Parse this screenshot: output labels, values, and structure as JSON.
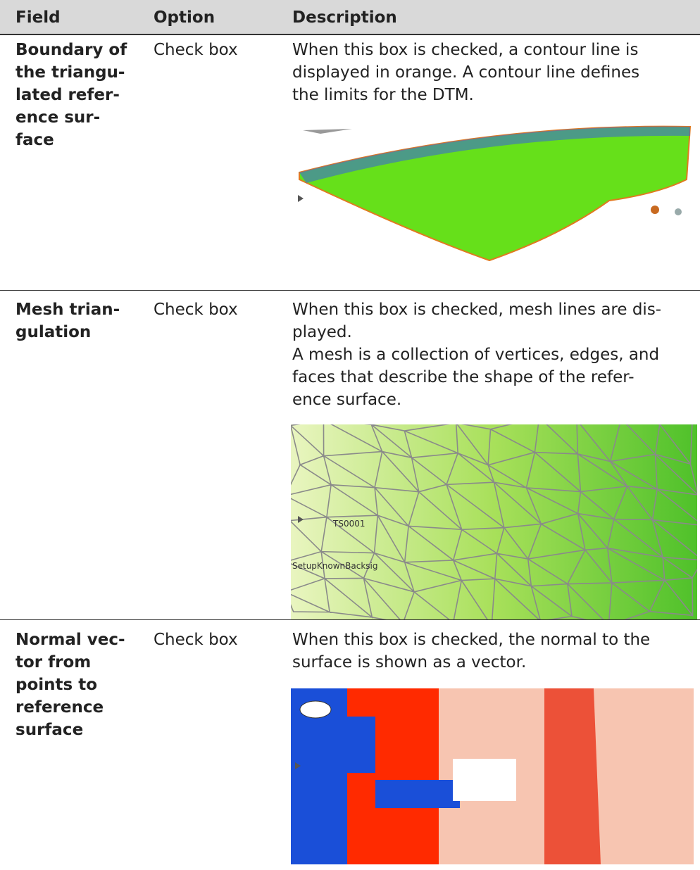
{
  "header": {
    "field": "Field",
    "option": "Option",
    "description": "Description"
  },
  "rows": [
    {
      "field": [
        "Boundary of",
        "the triangu-",
        "lated refer-",
        "ence sur-",
        "face"
      ],
      "option": "Check box",
      "description": [
        "When this box is checked, a contour line is",
        "displayed in orange. A contour line defines",
        "the limits for the DTM."
      ]
    },
    {
      "field": [
        "Mesh trian-",
        "gulation"
      ],
      "option": "Check box",
      "description": [
        "When this box is checked, mesh lines are dis-",
        "played.",
        "A mesh is a collection of vertices, edges, and",
        "faces that describe the shape of the refer-",
        "ence surface."
      ],
      "image_labels": [
        "TS0001",
        "SetupKnownBacksig"
      ]
    },
    {
      "field": [
        "Normal vec-",
        "tor from",
        "points to",
        "reference",
        "surface"
      ],
      "option": "Check box",
      "description": [
        "When this box is checked, the normal to the",
        "surface is shown as a vector."
      ]
    }
  ]
}
